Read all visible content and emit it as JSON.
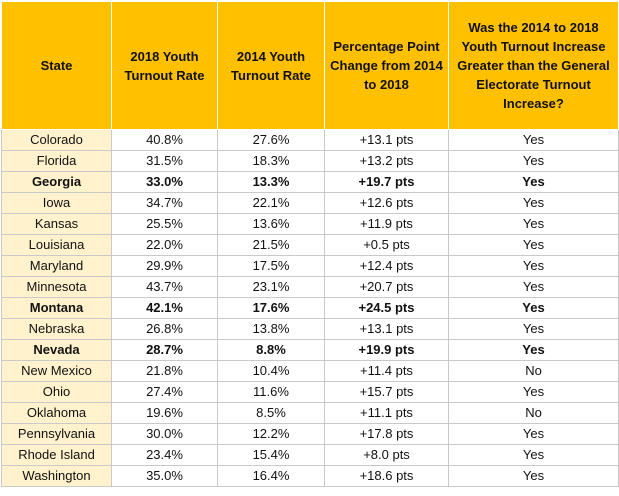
{
  "chart_data": {
    "type": "table",
    "columns": [
      "State",
      "2018 Youth Turnout Rate",
      "2014 Youth Turnout Rate",
      "Percentage Point Change from 2014 to 2018",
      "Was the 2014 to 2018 Youth Turnout Increase Greater than the General Electorate Turnout Increase?"
    ],
    "rows": [
      {
        "cells": [
          "Colorado",
          "40.8%",
          "27.6%",
          "+13.1 pts",
          "Yes"
        ],
        "bold": false
      },
      {
        "cells": [
          "Florida",
          "31.5%",
          "18.3%",
          "+13.2 pts",
          "Yes"
        ],
        "bold": false
      },
      {
        "cells": [
          "Georgia",
          "33.0%",
          "13.3%",
          "+19.7 pts",
          "Yes"
        ],
        "bold": true
      },
      {
        "cells": [
          "Iowa",
          "34.7%",
          "22.1%",
          "+12.6 pts",
          "Yes"
        ],
        "bold": false
      },
      {
        "cells": [
          "Kansas",
          "25.5%",
          "13.6%",
          "+11.9 pts",
          "Yes"
        ],
        "bold": false
      },
      {
        "cells": [
          "Louisiana",
          "22.0%",
          "21.5%",
          "+0.5 pts",
          "Yes"
        ],
        "bold": false
      },
      {
        "cells": [
          "Maryland",
          "29.9%",
          "17.5%",
          "+12.4 pts",
          "Yes"
        ],
        "bold": false
      },
      {
        "cells": [
          "Minnesota",
          "43.7%",
          "23.1%",
          "+20.7 pts",
          "Yes"
        ],
        "bold": false
      },
      {
        "cells": [
          "Montana",
          "42.1%",
          "17.6%",
          "+24.5 pts",
          "Yes"
        ],
        "bold": true
      },
      {
        "cells": [
          "Nebraska",
          "26.8%",
          "13.8%",
          "+13.1 pts",
          "Yes"
        ],
        "bold": false
      },
      {
        "cells": [
          "Nevada",
          "28.7%",
          "8.8%",
          "+19.9 pts",
          "Yes"
        ],
        "bold": true
      },
      {
        "cells": [
          "New Mexico",
          "21.8%",
          "10.4%",
          "+11.4 pts",
          "No"
        ],
        "bold": false
      },
      {
        "cells": [
          "Ohio",
          "27.4%",
          "11.6%",
          "+15.7 pts",
          "Yes"
        ],
        "bold": false
      },
      {
        "cells": [
          "Oklahoma",
          "19.6%",
          "8.5%",
          "+11.1 pts",
          "No"
        ],
        "bold": false
      },
      {
        "cells": [
          "Pennsylvania",
          "30.0%",
          "12.2%",
          "+17.8 pts",
          "Yes"
        ],
        "bold": false
      },
      {
        "cells": [
          "Rhode Island",
          "23.4%",
          "15.4%",
          "+8.0 pts",
          "Yes"
        ],
        "bold": false
      },
      {
        "cells": [
          "Washington",
          "35.0%",
          "16.4%",
          "+18.6 pts",
          "Yes"
        ],
        "bold": false
      }
    ]
  },
  "colors": {
    "header_bg": "#ffc000",
    "first_col_bg": "#fff2cc",
    "cell_bg": "#ffffff",
    "border": "#c9c9c9"
  }
}
